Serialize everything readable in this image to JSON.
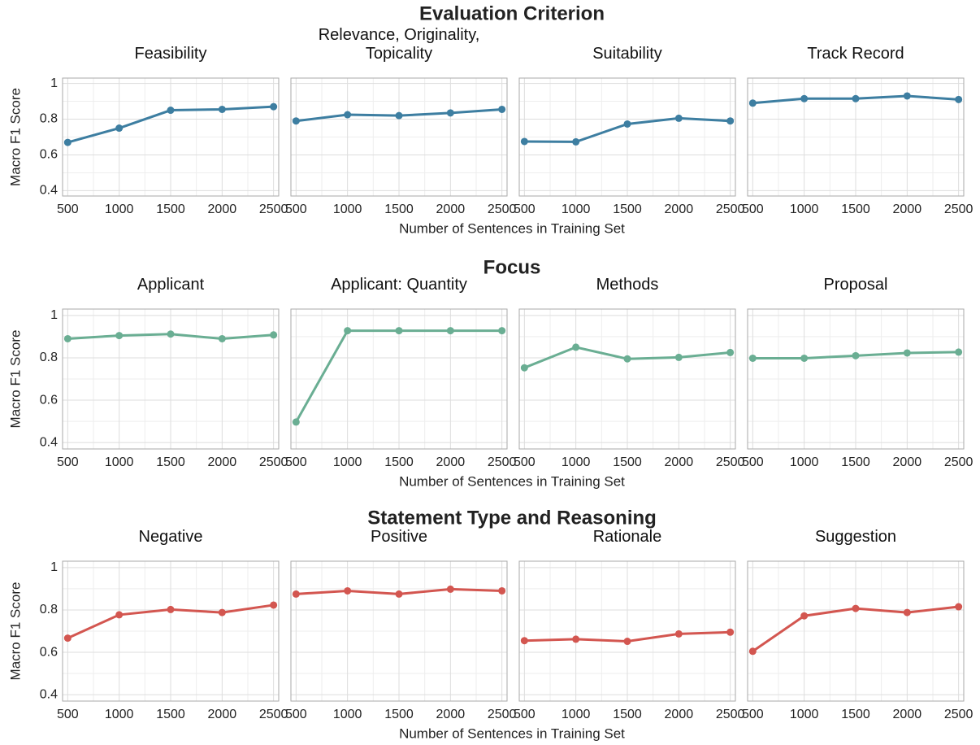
{
  "chart_data": [
    {
      "type": "line",
      "title": "Evaluation Criterion",
      "xlabel": "Number of Sentences in Training Set",
      "ylabel": "Macro F1 Score",
      "color": "#3d7ea1",
      "x": [
        500,
        1000,
        1500,
        2000,
        2500
      ],
      "xlim": [
        450,
        2550
      ],
      "xticks": [
        500,
        1000,
        1500,
        2000,
        2500
      ],
      "minor_xticks": [
        750,
        1250,
        1750,
        2250
      ],
      "ylim": [
        0.37,
        1.03
      ],
      "yticks": [
        0.4,
        0.6,
        0.8,
        1.0
      ],
      "minor_yticks": [
        0.5,
        0.7,
        0.9
      ],
      "grid": true,
      "panels": [
        {
          "title": "Feasibility",
          "values": [
            0.67,
            0.75,
            0.85,
            0.855,
            0.87
          ]
        },
        {
          "title": "Relevance, Originality, Topicality",
          "values": [
            0.79,
            0.825,
            0.82,
            0.835,
            0.855
          ]
        },
        {
          "title": "Suitability",
          "values": [
            0.675,
            0.673,
            0.773,
            0.805,
            0.79
          ]
        },
        {
          "title": "Track Record",
          "values": [
            0.89,
            0.915,
            0.915,
            0.93,
            0.91
          ]
        }
      ]
    },
    {
      "type": "line",
      "title": "Focus",
      "xlabel": "Number of Sentences in Training Set",
      "ylabel": "Macro F1 Score",
      "color": "#6aae93",
      "x": [
        500,
        1000,
        1500,
        2000,
        2500
      ],
      "xlim": [
        450,
        2550
      ],
      "xticks": [
        500,
        1000,
        1500,
        2000,
        2500
      ],
      "minor_xticks": [
        750,
        1250,
        1750,
        2250
      ],
      "ylim": [
        0.37,
        1.03
      ],
      "yticks": [
        0.4,
        0.6,
        0.8,
        1.0
      ],
      "minor_yticks": [
        0.5,
        0.7,
        0.9
      ],
      "grid": true,
      "panels": [
        {
          "title": "Applicant",
          "values": [
            0.89,
            0.905,
            0.912,
            0.89,
            0.908
          ]
        },
        {
          "title": "Applicant: Quantity",
          "values": [
            0.497,
            0.928,
            0.928,
            0.928,
            0.928
          ]
        },
        {
          "title": "Methods",
          "values": [
            0.753,
            0.85,
            0.795,
            0.802,
            0.825
          ]
        },
        {
          "title": "Proposal",
          "values": [
            0.798,
            0.798,
            0.81,
            0.823,
            0.827
          ]
        }
      ]
    },
    {
      "type": "line",
      "title": "Statement Type and Reasoning",
      "xlabel": "Number of Sentences in Training Set",
      "ylabel": "Macro F1 Score",
      "color": "#d35650",
      "x": [
        500,
        1000,
        1500,
        2000,
        2500
      ],
      "xlim": [
        450,
        2550
      ],
      "xticks": [
        500,
        1000,
        1500,
        2000,
        2500
      ],
      "minor_xticks": [
        750,
        1250,
        1750,
        2250
      ],
      "ylim": [
        0.37,
        1.03
      ],
      "yticks": [
        0.4,
        0.6,
        0.8,
        1.0
      ],
      "minor_yticks": [
        0.5,
        0.7,
        0.9
      ],
      "grid": true,
      "panels": [
        {
          "title": "Negative",
          "values": [
            0.667,
            0.777,
            0.802,
            0.788,
            0.823
          ]
        },
        {
          "title": "Positive",
          "values": [
            0.875,
            0.89,
            0.875,
            0.898,
            0.89
          ]
        },
        {
          "title": "Rationale",
          "values": [
            0.655,
            0.662,
            0.652,
            0.687,
            0.695
          ]
        },
        {
          "title": "Suggestion",
          "values": [
            0.605,
            0.772,
            0.807,
            0.788,
            0.815
          ]
        }
      ]
    }
  ]
}
